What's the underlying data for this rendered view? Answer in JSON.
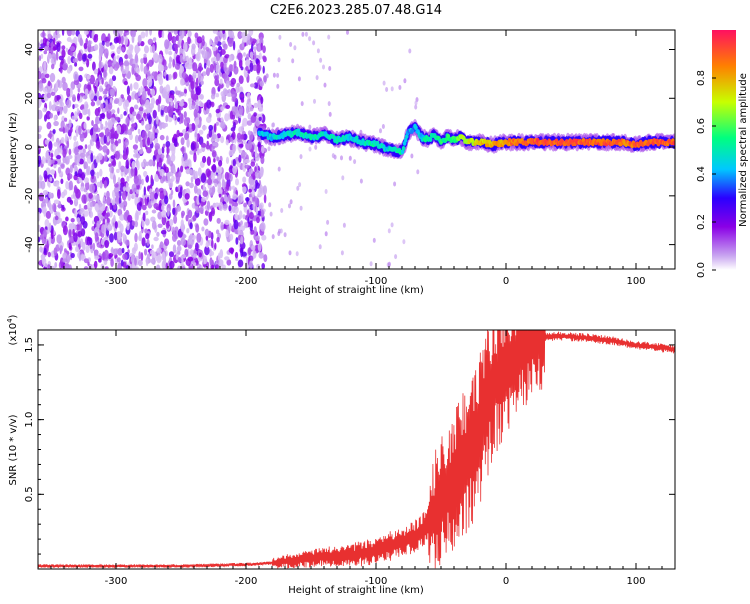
{
  "title": "C2E6.2023.285.07.48.G14",
  "chart_data": [
    {
      "type": "heatmap",
      "xlabel": "Height of straight line (km)",
      "ylabel": "Frequency (Hz)",
      "xlim": [
        -360,
        130
      ],
      "ylim": [
        -50,
        48
      ],
      "xticks": [
        -300,
        -200,
        -100,
        0,
        100
      ],
      "yticks": [
        40,
        20,
        0,
        -20,
        -40
      ],
      "colorbar": {
        "label": "Normalized spectral amplitude",
        "range": [
          0.0,
          1.0
        ],
        "ticks": [
          0.0,
          0.2,
          0.4,
          0.6,
          0.8
        ],
        "colors": [
          "#ffffff",
          "#c8a4f0",
          "#8a00e6",
          "#2a00ff",
          "#00c8ff",
          "#00ff80",
          "#c8ff00",
          "#ff8000",
          "#ff1060"
        ]
      },
      "noise_region": {
        "x_from": -360,
        "x_to": -185,
        "mean_amplitude": 0.1
      },
      "trace": {
        "x": [
          -190,
          -180,
          -170,
          -160,
          -150,
          -140,
          -130,
          -120,
          -110,
          -100,
          -90,
          -80,
          -75,
          -70,
          -65,
          -60,
          -55,
          -50,
          -45,
          -40,
          -35,
          -30,
          -20,
          -10,
          0,
          20,
          40,
          60,
          80,
          90,
          100,
          110,
          120,
          130
        ],
        "y": [
          6,
          4,
          5,
          6,
          4,
          5,
          3,
          4,
          2,
          1,
          -1,
          -2,
          6,
          8,
          4,
          3,
          5,
          2,
          4,
          3,
          4,
          2,
          2,
          1,
          2,
          2,
          2,
          2,
          2,
          2,
          1,
          2,
          2,
          2
        ],
        "amplitude": [
          0.4,
          0.45,
          0.45,
          0.5,
          0.5,
          0.45,
          0.5,
          0.45,
          0.5,
          0.5,
          0.45,
          0.5,
          0.4,
          0.4,
          0.45,
          0.5,
          0.5,
          0.55,
          0.55,
          0.6,
          0.65,
          0.7,
          0.75,
          0.8,
          0.85,
          0.9,
          0.9,
          0.9,
          0.9,
          0.85,
          0.9,
          0.9,
          0.9,
          0.9
        ]
      }
    },
    {
      "type": "line",
      "xlabel": "Height of straight line (km)",
      "ylabel": "SNR (10 * v/v)",
      "y_multiplier": "(x10",
      "y_multiplier_exp": "4",
      "y_multiplier_close": ")",
      "xlim": [
        -360,
        130
      ],
      "ylim": [
        0,
        1.6
      ],
      "xticks": [
        -300,
        -200,
        -100,
        0,
        100
      ],
      "yticks": [
        0.5,
        1.0,
        1.5
      ],
      "line_color": "#e83030",
      "series": [
        {
          "x": [
            -360,
            -300,
            -250,
            -200,
            -180,
            -160,
            -140,
            -120,
            -100,
            -80,
            -70,
            -60,
            -50,
            -40,
            -30,
            -20,
            -15,
            -10,
            -5,
            0,
            10,
            20,
            30,
            40,
            60,
            80,
            100,
            120,
            130
          ],
          "values": [
            0.02,
            0.02,
            0.02,
            0.03,
            0.04,
            0.06,
            0.08,
            0.09,
            0.12,
            0.18,
            0.22,
            0.3,
            0.45,
            0.6,
            0.75,
            0.9,
            1.1,
            1.25,
            1.3,
            1.35,
            1.45,
            1.52,
            1.55,
            1.56,
            1.55,
            1.53,
            1.5,
            1.48,
            1.47
          ]
        }
      ]
    }
  ]
}
